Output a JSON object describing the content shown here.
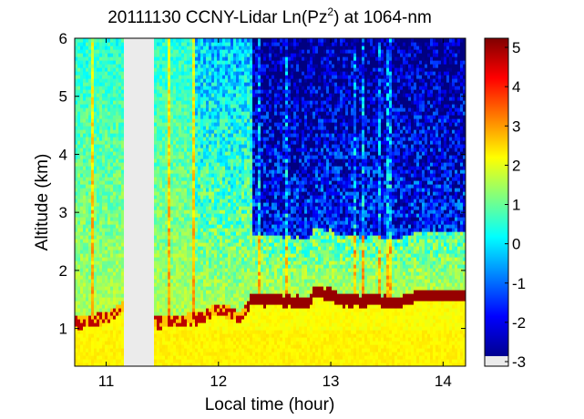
{
  "chart_data": {
    "type": "heatmap",
    "title_main": "20111130 CCNY-Lidar Ln(Pz",
    "title_sup": "2",
    "title_tail": ") at 1064-nm",
    "xlabel": "Local time (hour)",
    "ylabel": "Altitude (km)",
    "xlim": [
      10.72,
      14.2
    ],
    "ylim": [
      0.35,
      6
    ],
    "xticks": [
      "11",
      "12",
      "13",
      "14"
    ],
    "yticks": [
      "1",
      "2",
      "3",
      "4",
      "5",
      "6"
    ],
    "colorbar": {
      "range": [
        -3,
        5.5
      ],
      "ticks": [
        "-3",
        "-2",
        "-1",
        "0",
        "1",
        "2",
        "3",
        "4",
        "5"
      ],
      "colormap": "jet"
    },
    "data_gap": {
      "x": [
        11.17,
        11.42
      ]
    },
    "aerosol_layer_top_km": [
      [
        10.72,
        1.2
      ],
      [
        10.9,
        1.25
      ],
      [
        11.0,
        1.3
      ],
      [
        11.15,
        1.45
      ],
      [
        11.42,
        1.2
      ],
      [
        11.7,
        1.25
      ],
      [
        11.85,
        1.3
      ],
      [
        12.0,
        1.45
      ],
      [
        12.2,
        1.3
      ],
      [
        12.3,
        1.6
      ],
      [
        12.5,
        1.6
      ],
      [
        12.8,
        1.55
      ],
      [
        12.85,
        1.72
      ],
      [
        13.0,
        1.7
      ],
      [
        13.1,
        1.58
      ],
      [
        13.4,
        1.58
      ],
      [
        13.6,
        1.55
      ],
      [
        13.8,
        1.68
      ],
      [
        14.2,
        1.65
      ]
    ],
    "gap_fill_color": "#ebebeb"
  }
}
